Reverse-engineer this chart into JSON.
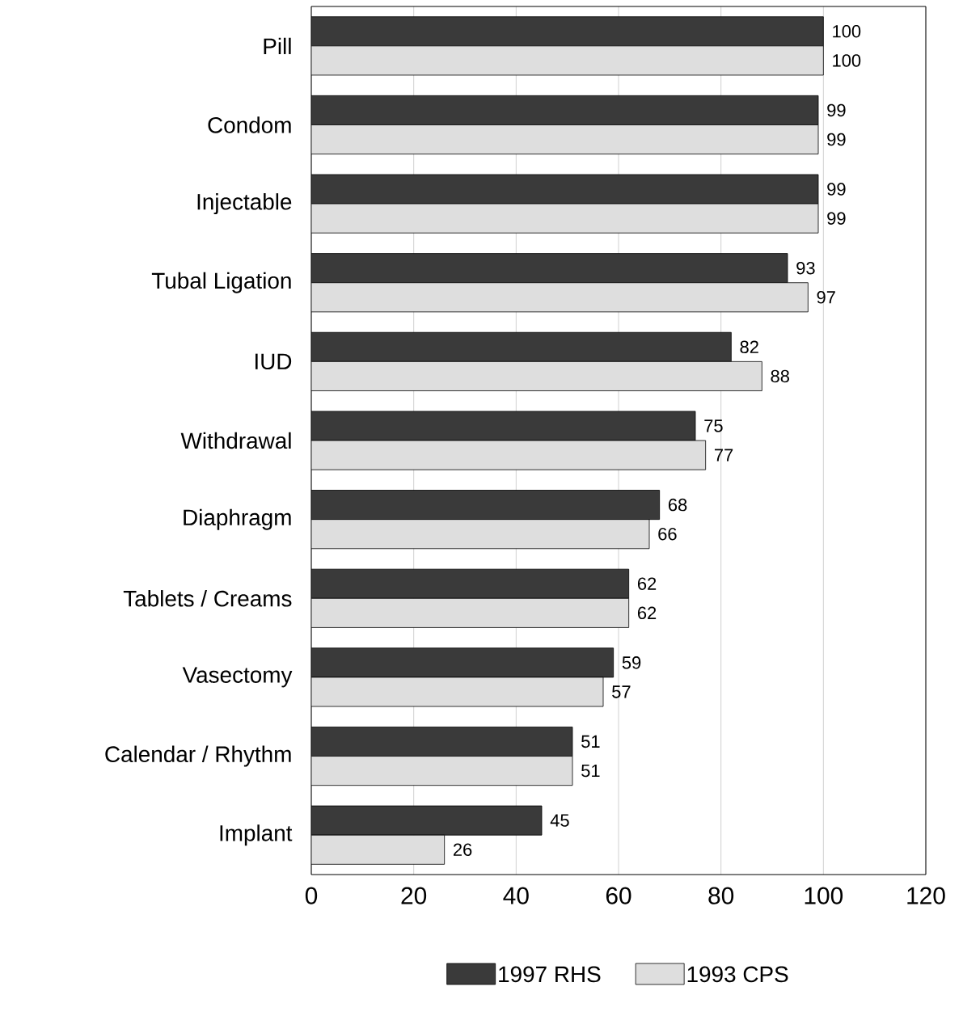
{
  "chart_data": {
    "type": "bar",
    "orientation": "horizontal",
    "categories": [
      "Pill",
      "Condom",
      "Injectable",
      "Tubal Ligation",
      "IUD",
      "Withdrawal",
      "Diaphragm",
      "Tablets / Creams",
      "Vasectomy",
      "Calendar / Rhythm",
      "Implant"
    ],
    "series": [
      {
        "name": "1997 RHS",
        "color": "#3a3a3a",
        "values": [
          100,
          99,
          99,
          93,
          82,
          75,
          68,
          62,
          59,
          51,
          45
        ]
      },
      {
        "name": "1993 CPS",
        "color": "#dedede",
        "values": [
          100,
          99,
          99,
          97,
          88,
          77,
          66,
          62,
          57,
          51,
          26
        ]
      }
    ],
    "xlim": [
      0,
      120
    ],
    "xticks": [
      0,
      20,
      40,
      60,
      80,
      100,
      120
    ],
    "grid": "x",
    "legend": "bottom",
    "data_labels": true
  }
}
